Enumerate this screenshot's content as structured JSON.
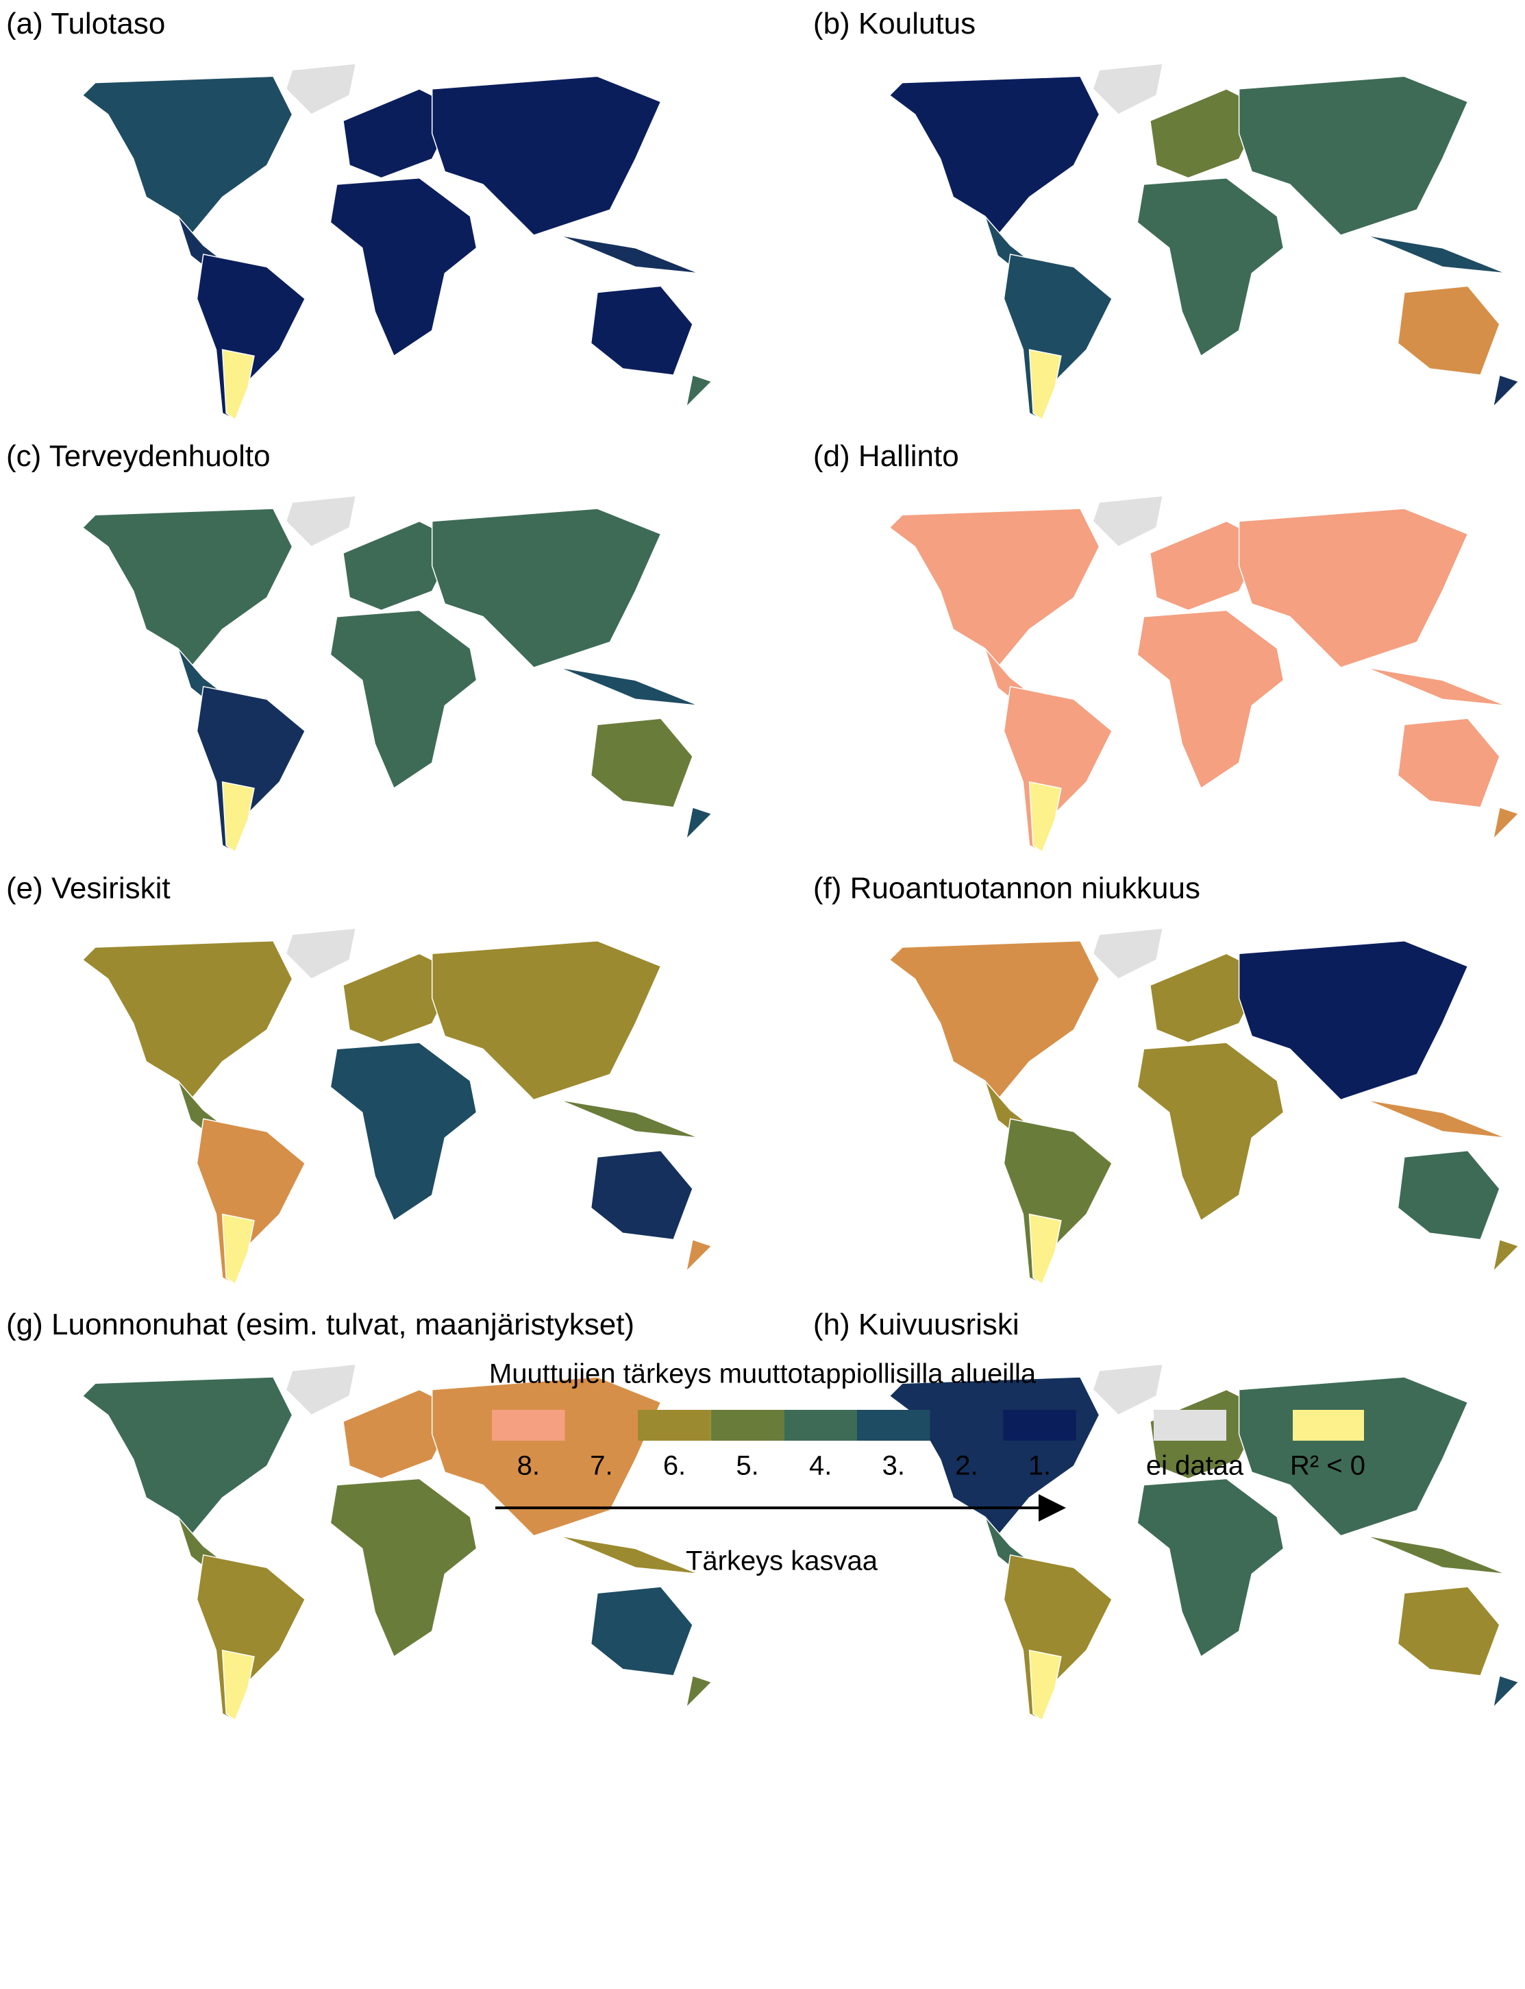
{
  "panels": [
    {
      "title": "(a) Tulotaso"
    },
    {
      "title": "(b) Koulutus"
    },
    {
      "title": "(c) Terveydenhuolto"
    },
    {
      "title": "(d) Hallinto"
    },
    {
      "title": "(e) Vesiriskit"
    },
    {
      "title": "(f) Ruoantuotannon niukkuus"
    },
    {
      "title": "(g) Luonnonuhat (esim. tulvat, maanjäristykset)"
    },
    {
      "title": "(h) Kuivuusriski"
    }
  ],
  "legend": {
    "title": "Muuttujien tärkeys muuttotappiollisilla alueilla",
    "items": [
      {
        "label": "8.",
        "color": "#f4a081"
      },
      {
        "label": "7.",
        "color": "#d68f48"
      },
      {
        "label": "6.",
        "color": "#9b8a2f"
      },
      {
        "label": "5.",
        "color": "#6a7c3a"
      },
      {
        "label": "4.",
        "color": "#3e6b56"
      },
      {
        "label": "3.",
        "color": "#1e4c62"
      },
      {
        "label": "2.",
        "color": "#15305c"
      },
      {
        "label": "1.",
        "color": "#0b1e5c"
      }
    ],
    "no_data": {
      "label": "ei dataa",
      "color": "#e0e0e0"
    },
    "negative": {
      "label": "R² < 0",
      "color": "#fcf18a"
    },
    "arrow_label": "Tärkeys kasvaa"
  }
}
